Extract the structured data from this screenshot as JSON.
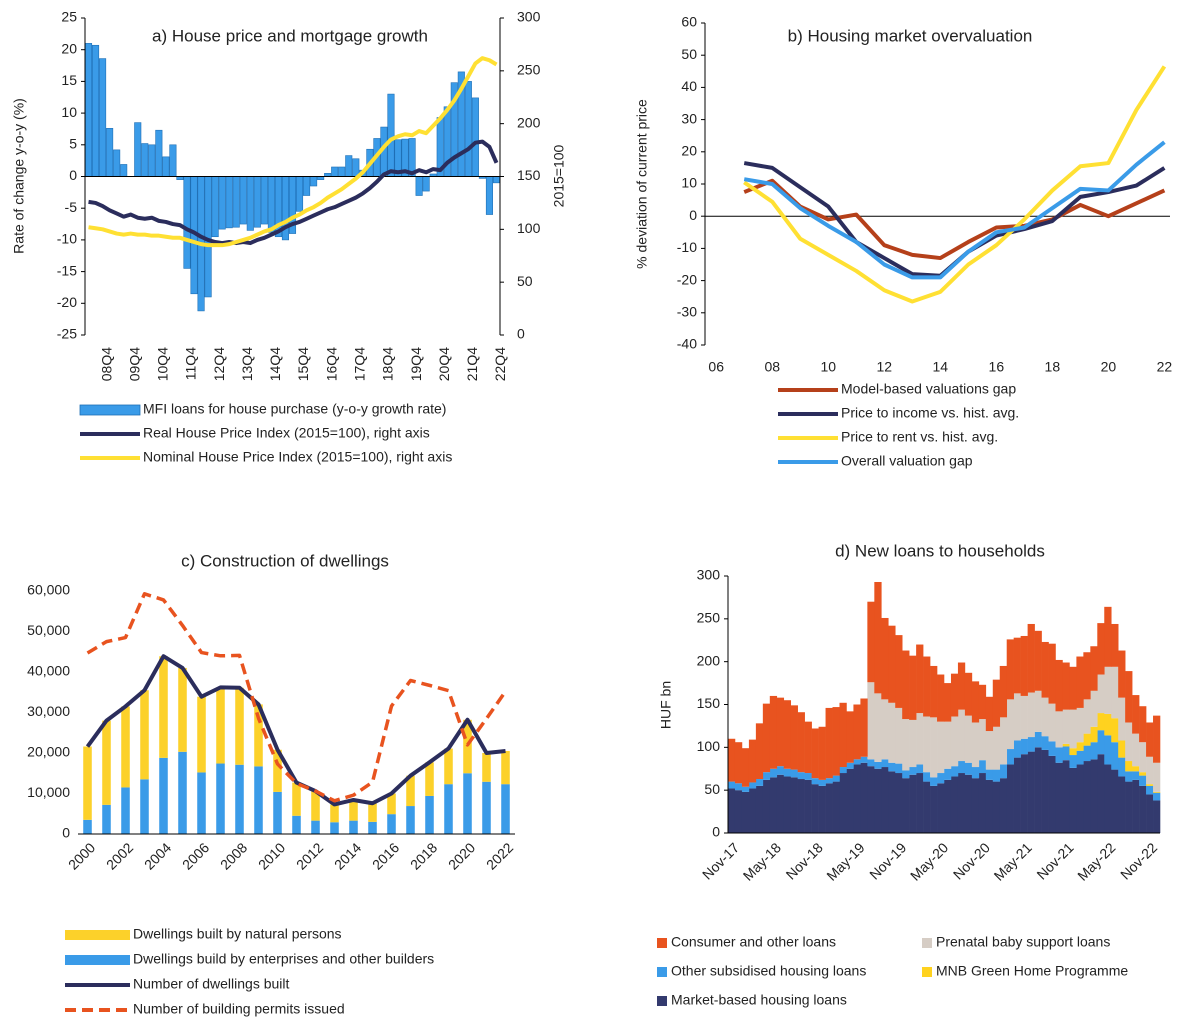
{
  "chart_data": [
    {
      "type": "bar",
      "title": "a) House price and mortgage growth",
      "ylabel": "Rate of change y-o-y (%)",
      "y2label": "2015=100",
      "categories": [
        null,
        null,
        "08Q4",
        null,
        null,
        null,
        "09Q4",
        null,
        null,
        null,
        "10Q4",
        null,
        null,
        null,
        "11Q4",
        null,
        null,
        null,
        "12Q4",
        null,
        null,
        null,
        "13Q4",
        null,
        null,
        null,
        "14Q4",
        null,
        null,
        null,
        "15Q4",
        null,
        null,
        null,
        "16Q4",
        null,
        null,
        null,
        "17Q4",
        null,
        null,
        null,
        "18Q4",
        null,
        null,
        null,
        "19Q4",
        null,
        null,
        null,
        "20Q4",
        null,
        null,
        null,
        "21Q4",
        null,
        null,
        null,
        "22Q4"
      ],
      "ylim": [
        -25,
        25
      ],
      "yticks": [
        25,
        20,
        15,
        10,
        5,
        0,
        -5,
        -10,
        -15,
        -20,
        -25
      ],
      "y2lim": [
        0,
        300
      ],
      "y2ticks": [
        300,
        250,
        200,
        150,
        100,
        50,
        0
      ],
      "series": [
        {
          "name": "MFI loans for house purchase (y-o-y growth rate)",
          "kind": "bar",
          "color": "#3a9be8",
          "values": [
            21,
            20.7,
            18.6,
            7.6,
            4.2,
            1.9,
            0,
            8.5,
            5.2,
            5,
            7.3,
            3.1,
            5,
            -0.5,
            -14.5,
            -18.5,
            -21.2,
            -19,
            -9.5,
            -8.3,
            -8.1,
            -8,
            -7.5,
            -8.5,
            -8,
            -7.5,
            -8.8,
            -9.5,
            -10,
            -9,
            -5.5,
            -3,
            -1.5,
            -0.5,
            0.5,
            1.5,
            1.5,
            3.3,
            2.8,
            1,
            4.3,
            6,
            7.8,
            13,
            5.8,
            5.9,
            6,
            -3,
            -2.3,
            0.4,
            9.3,
            11,
            14.8,
            16.5,
            15,
            12.4,
            -0.3,
            -6,
            -1
          ]
        },
        {
          "name": "Real House Price Index (2015=100), right axis",
          "kind": "line",
          "axis": "y2",
          "color": "#2b2d5c",
          "values": [
            126,
            125,
            122,
            118,
            115,
            112,
            114,
            111,
            110,
            111,
            108,
            107,
            105,
            104,
            100,
            97,
            93,
            90,
            88,
            87,
            88,
            87,
            88,
            87,
            90,
            92,
            95,
            98,
            102,
            105,
            107,
            110,
            113,
            116,
            119,
            121,
            124,
            127,
            130,
            134,
            139,
            145,
            152,
            155,
            154,
            155,
            153,
            156,
            154,
            157,
            156,
            163,
            168,
            172,
            176,
            182,
            183,
            178,
            163
          ]
        },
        {
          "name": "Nominal House Price Index (2015=100), right axis",
          "kind": "line",
          "axis": "y2",
          "color": "#ffe033",
          "values": [
            102,
            101,
            100,
            98,
            96,
            95,
            96,
            95,
            95,
            94,
            94,
            93,
            92,
            92,
            90,
            88,
            86,
            85,
            85,
            85,
            86,
            88,
            90,
            92,
            95,
            98,
            100,
            104,
            107,
            111,
            114,
            118,
            121,
            125,
            130,
            134,
            138,
            143,
            148,
            154,
            162,
            170,
            178,
            185,
            188,
            190,
            189,
            193,
            191,
            198,
            205,
            213,
            222,
            233,
            245,
            257,
            262,
            260,
            256
          ]
        }
      ]
    },
    {
      "type": "line",
      "title": "b) Housing market overvaluation",
      "ylabel": "% deviation of current price",
      "x": [
        7,
        8,
        9,
        10,
        11,
        12,
        13,
        14,
        15,
        16,
        17,
        18,
        19,
        20,
        21,
        22
      ],
      "xlim": [
        5.6,
        22.2
      ],
      "xticks": [
        {
          "value": 6,
          "label": "06"
        },
        {
          "value": 8,
          "label": "08"
        },
        10,
        12,
        14,
        16,
        18,
        20,
        22
      ],
      "ylim": [
        -40,
        60
      ],
      "yticks": [
        60,
        50,
        40,
        30,
        20,
        10,
        0,
        -10,
        -20,
        -30,
        -40
      ],
      "series": [
        {
          "name": "Model-based valuations gap",
          "color": "#b5401a",
          "values": [
            7.5,
            11,
            3,
            -1,
            0.5,
            -9,
            -12,
            -13,
            -8,
            -3.5,
            -3,
            -1,
            3.5,
            0,
            4,
            8
          ]
        },
        {
          "name": "Price to income vs. hist. avg.",
          "color": "#2b2d5c",
          "values": [
            16.5,
            15,
            9,
            3,
            -8,
            -13,
            -18,
            -18.5,
            -11,
            -6,
            -4,
            -1.5,
            6,
            7.5,
            9.5,
            15
          ]
        },
        {
          "name": "Price to rent vs. hist. avg.",
          "color": "#ffe033",
          "values": [
            10.5,
            4.5,
            -7,
            -12,
            -17,
            -23,
            -26.5,
            -23.5,
            -15,
            -9,
            -1,
            8,
            15.5,
            16.5,
            33,
            46.5
          ]
        },
        {
          "name": "Overall valuation gap",
          "color": "#3a9be8",
          "values": [
            11.5,
            10,
            2.5,
            -3,
            -8,
            -15,
            -19,
            -19,
            -11,
            -5,
            -3.5,
            2.5,
            8.5,
            8,
            16,
            23
          ]
        }
      ]
    },
    {
      "type": "bar",
      "title": "c) Construction of dwellings",
      "categories": [
        "2000",
        null,
        "2002",
        null,
        "2004",
        null,
        "2006",
        null,
        "2008",
        null,
        "2010",
        null,
        "2012",
        null,
        "2014",
        null,
        "2016",
        null,
        "2018",
        null,
        "2020",
        null,
        "2022"
      ],
      "ylim": [
        0,
        60000
      ],
      "yticks": [
        {
          "value": 60000,
          "label": "60,000"
        },
        {
          "value": 50000,
          "label": "50,000"
        },
        {
          "value": 40000,
          "label": "40,000"
        },
        {
          "value": 30000,
          "label": "30,000"
        },
        {
          "value": 20000,
          "label": "20,000"
        },
        {
          "value": 10000,
          "label": "10,000"
        },
        0
      ],
      "series": [
        {
          "name": "Dwellings built by natural persons",
          "kind": "bar",
          "color": "#fcd12a",
          "values": [
            18100,
            20800,
            20000,
            22000,
            25100,
            20700,
            18700,
            18800,
            19000,
            15300,
            10400,
            8200,
            7300,
            4400,
            5100,
            4600,
            5100,
            7500,
            8300,
            8800,
            13200,
            7100,
            8200
          ]
        },
        {
          "name": "Dwellings build by enterprises and other builders",
          "kind": "bar",
          "color": "#3a9be8",
          "values": [
            3500,
            7200,
            11500,
            13500,
            18800,
            20300,
            15200,
            17400,
            17100,
            16700,
            10400,
            4500,
            3300,
            2900,
            3300,
            3000,
            4900,
            6900,
            9400,
            12300,
            15000,
            12900,
            12300
          ]
        },
        {
          "name": "Number of dwellings built",
          "kind": "line",
          "color": "#2b2d5c",
          "values": [
            21600,
            28000,
            31500,
            35500,
            43900,
            41000,
            33900,
            36200,
            36100,
            32000,
            20800,
            12700,
            10600,
            7300,
            8400,
            7600,
            10000,
            14400,
            17700,
            21100,
            28200,
            20000,
            20500
          ]
        },
        {
          "name": "Number of building permits issued",
          "kind": "line",
          "style": "dashed",
          "color": "#e8531f",
          "values": [
            44700,
            47500,
            48500,
            59300,
            57800,
            51500,
            44800,
            44000,
            44100,
            28600,
            17300,
            12500,
            10600,
            8200,
            9600,
            12800,
            31600,
            37900,
            36700,
            35400,
            22000,
            28500,
            35200
          ]
        }
      ]
    },
    {
      "type": "bar",
      "title": "d) New loans to households",
      "ylabel": "HUF bn",
      "categories": [
        "Nov-17",
        null,
        null,
        null,
        null,
        null,
        "May-18",
        null,
        null,
        null,
        null,
        null,
        "Nov-18",
        null,
        null,
        null,
        null,
        null,
        "May-19",
        null,
        null,
        null,
        null,
        null,
        "Nov-19",
        null,
        null,
        null,
        null,
        null,
        "May-20",
        null,
        null,
        null,
        null,
        null,
        "Nov-20",
        null,
        null,
        null,
        null,
        null,
        "May-21",
        null,
        null,
        null,
        null,
        null,
        "Nov-21",
        null,
        null,
        null,
        null,
        null,
        "May-22",
        null,
        null,
        null,
        null,
        null,
        "Nov-22",
        null
      ],
      "ylim": [
        0,
        300
      ],
      "yticks": [
        300,
        250,
        200,
        150,
        100,
        50,
        0
      ],
      "series": [
        {
          "name": "Consumer and other loans",
          "color": "#e8531f",
          "values": [
            50,
            48,
            45,
            50,
            65,
            80,
            85,
            80,
            80,
            75,
            70,
            60,
            58,
            62,
            82,
            80,
            75,
            60,
            64,
            68,
            94,
            130,
            95,
            90,
            85,
            80,
            75,
            80,
            70,
            60,
            55,
            45,
            50,
            55,
            50,
            48,
            40,
            40,
            55,
            60,
            70,
            65,
            70,
            80,
            70,
            65,
            70,
            60,
            55,
            50,
            60,
            55,
            52,
            60,
            70,
            50,
            55,
            60,
            45,
            42,
            40,
            55
          ]
        },
        {
          "name": "Prenatal baby support loans",
          "color": "#d6cdc5",
          "values": [
            0,
            0,
            0,
            0,
            0,
            0,
            0,
            0,
            0,
            0,
            0,
            0,
            0,
            0,
            0,
            0,
            0,
            0,
            0,
            0,
            90,
            80,
            70,
            70,
            65,
            60,
            55,
            60,
            65,
            70,
            60,
            55,
            58,
            60,
            55,
            52,
            48,
            45,
            50,
            55,
            58,
            55,
            50,
            52,
            48,
            45,
            44,
            42,
            40,
            45,
            40,
            40,
            42,
            45,
            55,
            60,
            50,
            45,
            38,
            35,
            32,
            34
          ]
        },
        {
          "name": "Other subsidised housing loans",
          "color": "#3a9be8",
          "values": [
            8,
            8,
            6,
            7,
            8,
            9,
            10,
            10,
            9,
            9,
            8,
            8,
            7,
            7,
            6,
            7,
            7,
            7,
            6,
            7,
            8,
            8,
            9,
            10,
            11,
            9,
            9,
            10,
            11,
            10,
            12,
            13,
            12,
            14,
            14,
            13,
            15,
            12,
            14,
            16,
            18,
            20,
            18,
            17,
            18,
            16,
            17,
            18,
            16,
            15,
            16,
            18,
            20,
            28,
            34,
            32,
            22,
            12,
            10,
            12,
            10,
            9
          ]
        },
        {
          "name": "MNB Green Home Programme",
          "color": "#ffd21f",
          "values": [
            0,
            0,
            0,
            0,
            0,
            0,
            0,
            0,
            0,
            0,
            0,
            0,
            0,
            0,
            0,
            0,
            0,
            0,
            0,
            0,
            0,
            0,
            0,
            0,
            0,
            0,
            0,
            0,
            0,
            0,
            0,
            0,
            0,
            0,
            0,
            0,
            0,
            0,
            0,
            0,
            0,
            0,
            0,
            0,
            0,
            0,
            0,
            0,
            3,
            8,
            10,
            14,
            18,
            20,
            25,
            28,
            20,
            12,
            6,
            4,
            2,
            1
          ]
        },
        {
          "name": "Market-based housing loans",
          "color": "#333a6e",
          "values": [
            52,
            50,
            48,
            52,
            55,
            62,
            65,
            68,
            66,
            65,
            63,
            62,
            57,
            55,
            58,
            60,
            70,
            75,
            80,
            82,
            78,
            75,
            77,
            72,
            70,
            64,
            68,
            70,
            60,
            55,
            58,
            62,
            66,
            70,
            68,
            64,
            70,
            62,
            60,
            64,
            80,
            88,
            92,
            95,
            100,
            97,
            90,
            82,
            85,
            76,
            80,
            84,
            86,
            92,
            80,
            74,
            66,
            60,
            62,
            55,
            45,
            38
          ]
        }
      ]
    }
  ]
}
